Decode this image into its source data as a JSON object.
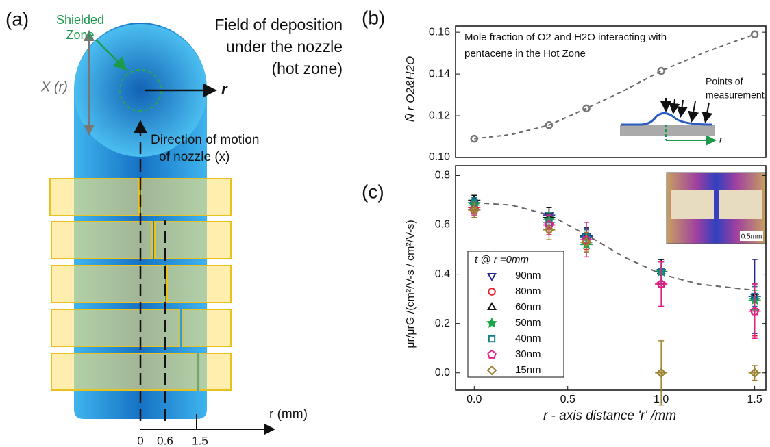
{
  "panel_a": {
    "label": "(a)",
    "shielded": [
      "Shielded",
      "Zone"
    ],
    "field": [
      "Field of deposition",
      "under the nozzle",
      "(hot zone)"
    ],
    "x_r": "X (r)",
    "r_arrow": "r",
    "motion": [
      "Direction of motion",
      "of nozzle (x)"
    ],
    "axis_label": "r (mm)",
    "axis_ticks": [
      "0",
      "0.6",
      "1.5"
    ]
  },
  "chart_data": [
    {
      "type": "line",
      "panel": "(b)",
      "y_label": "N̄ r O2&H2O",
      "annotation": [
        "Mole fraction of O2 and H2O interacting with",
        "pentacene in the Hot Zone"
      ],
      "inset_labels": [
        "Points of",
        "measurement",
        "r"
      ],
      "x": [
        0,
        0.4,
        0.6,
        1.0,
        1.5
      ],
      "values": [
        0.109,
        0.1155,
        0.1235,
        0.1415,
        0.159
      ],
      "color": "#777777",
      "fit": {
        "x": [
          0,
          0.2,
          0.4,
          0.6,
          0.8,
          1.0,
          1.25,
          1.5
        ],
        "values": [
          0.109,
          0.111,
          0.1155,
          0.1235,
          0.132,
          0.1415,
          0.151,
          0.159
        ]
      },
      "xlim": [
        -0.1,
        1.56
      ],
      "ylim": [
        0.1,
        0.163
      ],
      "yticks": [
        {
          "value": 0.1,
          "label": "0.10"
        },
        0.12,
        0.14,
        0.16
      ]
    },
    {
      "type": "scatter",
      "panel": "(c)",
      "x_label": "r - axis distance 'r' /mm",
      "y_label": "μr/μrG /(cm²/V-s / cm²/V-s)",
      "legend_title": "t @ r =0mm",
      "scale_label": "0.5mm",
      "x": [
        0,
        0.4,
        0.6,
        1.0,
        1.5
      ],
      "series": [
        {
          "name": "90nm",
          "color": "#1f2a8c",
          "marker": "triangle-down",
          "values": [
            0.69,
            0.64,
            0.555,
            0.41,
            0.31
          ],
          "errors": [
            0.02,
            0.03,
            0.03,
            0.05,
            0.15
          ]
        },
        {
          "name": "80nm",
          "color": "#e8202a",
          "marker": "circle",
          "values": [
            0.67,
            0.6,
            0.54,
            0.36,
            0.25
          ],
          "errors": [
            0.02,
            0.03,
            0.04,
            0.09,
            0.1
          ]
        },
        {
          "name": "60nm",
          "color": "#111111",
          "marker": "triangle-up",
          "values": [
            0.7,
            0.63,
            0.55,
            0.41,
            0.31
          ],
          "errors": [
            0.02,
            0.04,
            0.04,
            0.05,
            0.05
          ]
        },
        {
          "name": "50nm",
          "color": "#1aa64a",
          "marker": "star",
          "values": [
            0.68,
            0.62,
            0.52,
            0.41,
            0.295
          ],
          "errors": [
            0.02,
            0.03,
            0.03,
            0.04,
            0.04
          ]
        },
        {
          "name": "40nm",
          "color": "#137f8a",
          "marker": "square",
          "values": [
            0.69,
            0.61,
            0.55,
            0.41,
            0.31
          ],
          "errors": [
            0.02,
            0.03,
            0.03,
            0.04,
            0.04
          ]
        },
        {
          "name": "30nm",
          "color": "#e0208f",
          "marker": "pentagon",
          "values": [
            0.66,
            0.6,
            0.54,
            0.36,
            0.25
          ],
          "errors": [
            0.02,
            0.04,
            0.07,
            0.09,
            0.11
          ]
        },
        {
          "name": "15nm",
          "color": "#9a8230",
          "marker": "diamond",
          "values": [
            0.66,
            0.58,
            0.53,
            0,
            0
          ],
          "errors": [
            0.03,
            0.04,
            0.04,
            0.13,
            0.03
          ]
        }
      ],
      "fit": {
        "x": [
          0,
          0.2,
          0.4,
          0.6,
          0.8,
          1.0,
          1.2,
          1.5
        ],
        "values": [
          0.69,
          0.68,
          0.64,
          0.56,
          0.47,
          0.4,
          0.36,
          0.335
        ]
      },
      "xlim": [
        -0.1,
        1.56
      ],
      "ylim": [
        -0.07,
        0.84
      ],
      "xticks": [
        {
          "value": 0,
          "label": "0.0"
        },
        0.5,
        {
          "value": 1,
          "label": "1.0"
        },
        1.5
      ],
      "yticks": [
        {
          "value": 0,
          "label": "0.0"
        },
        0.2,
        0.4,
        0.6,
        0.8
      ]
    }
  ]
}
